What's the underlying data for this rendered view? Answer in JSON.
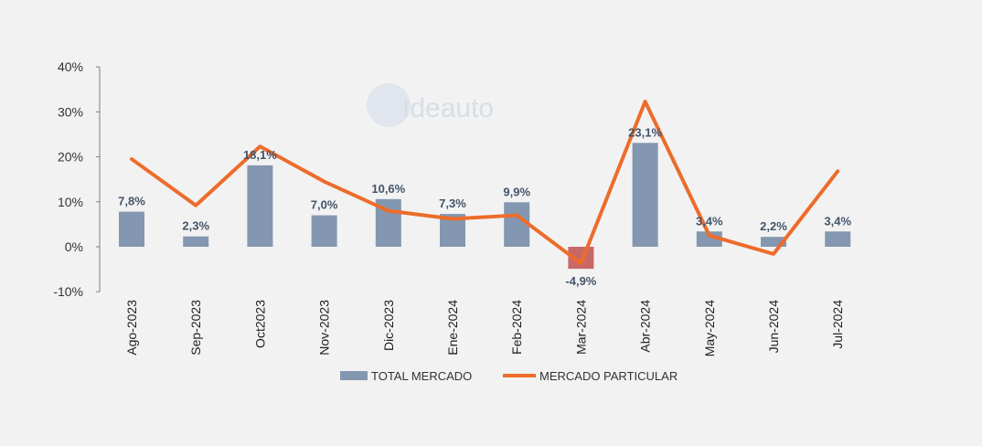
{
  "chart_data": {
    "type": "bar",
    "categories": [
      "Ago-2023",
      "Sep-2023",
      "Oct2023",
      "Nov-2023",
      "Dic-2023",
      "Ene-2024",
      "Feb-2024",
      "Mar-2024",
      "Abr-2024",
      "May-2024",
      "Jun-2024",
      "Jul-2024"
    ],
    "series": [
      {
        "name": "TOTAL MERCADO",
        "type": "bar",
        "color": "#8497b0",
        "negative_color": "#c0504d",
        "values": [
          7.8,
          2.3,
          18.1,
          7.0,
          10.6,
          7.3,
          9.9,
          -4.9,
          23.1,
          3.4,
          2.2,
          3.4
        ],
        "labels": [
          "7,8%",
          "2,3%",
          "18,1%",
          "7,0%",
          "10,6%",
          "7,3%",
          "9,9%",
          "-4,9%",
          "23,1%",
          "3,4%",
          "2,2%",
          "3,4%"
        ]
      },
      {
        "name": "MERCADO PARTICULAR",
        "type": "line",
        "color": "#ed6c2b",
        "values": [
          19.5,
          9.2,
          22.3,
          14.5,
          8.0,
          6.2,
          7.0,
          -3.7,
          32.3,
          2.5,
          -1.6,
          16.8
        ]
      }
    ],
    "yticks": [
      "40%",
      "30%",
      "20%",
      "10%",
      "0%",
      "-10%"
    ],
    "ytick_values": [
      40,
      30,
      20,
      10,
      0,
      -10
    ],
    "ylim": [
      -10,
      40
    ],
    "negative_label_color": "#c0504d",
    "legend_position": "bottom",
    "grid": false,
    "watermark": "Ideauto"
  }
}
